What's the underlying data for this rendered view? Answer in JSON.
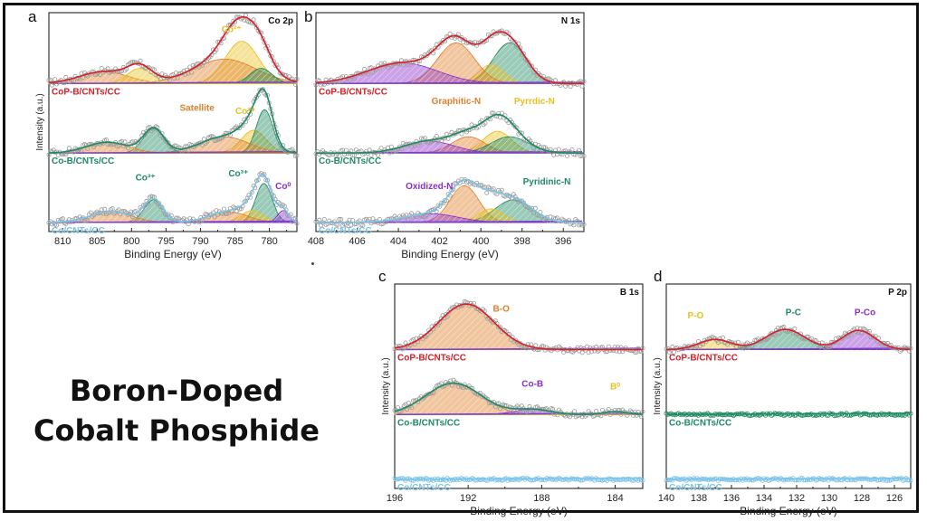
{
  "title_lines": [
    "Boron-Doped",
    "Cobalt Phosphide"
  ],
  "colors": {
    "CoP-B/CNTs/CC": "#d6202a",
    "Co-B/CNTs/CC": "#1f8a62",
    "Co/CNTs/CC": "#7cc3e8",
    "orange": "#e0802a",
    "yellow": "#e8c020",
    "green": "#1f8a62",
    "purple": "#8b2fc9"
  },
  "chart_data": [
    {
      "type": "line",
      "panel": "a",
      "title": "Co 2p",
      "xlabel": "Binding Energy (eV)",
      "ylabel": "Intensity (a.u.)",
      "xlim": [
        812,
        776
      ],
      "x_reversed": true,
      "x_ticks": [
        810,
        805,
        800,
        795,
        790,
        785,
        780
      ],
      "y_ticks": false,
      "series": [
        {
          "name": "CoP-B/CNTs/CC",
          "color": "#d6202a",
          "offset": 2.2,
          "peaks": [
            {
              "label": "Co²⁺",
              "center": 784,
              "height": 0.78,
              "width": 2.4,
              "color": "#e8c020"
            },
            {
              "center": 786.5,
              "height": 0.45,
              "width": 4.5,
              "color": "#e0802a"
            },
            {
              "center": 781.2,
              "height": 0.28,
              "width": 1.6,
              "color": "#1f8a62"
            },
            {
              "center": 804,
              "height": 0.22,
              "width": 3.5,
              "color": "#e0802a"
            },
            {
              "center": 798.8,
              "height": 0.28,
              "width": 1.8,
              "color": "#e8c020"
            }
          ]
        },
        {
          "name": "Co-B/CNTs/CC",
          "color": "#1f8a62",
          "offset": 1.1,
          "peaks": [
            {
              "label": "Co²⁺",
              "center": 782.3,
              "height": 0.42,
              "width": 1.8,
              "color": "#e8c020"
            },
            {
              "center": 780.7,
              "height": 0.8,
              "width": 1.2,
              "color": "#1f8a62"
            },
            {
              "label": "Satellite",
              "center": 786.5,
              "height": 0.3,
              "width": 3.5,
              "color": "#e0802a"
            },
            {
              "center": 796.8,
              "height": 0.45,
              "width": 1.5,
              "color": "#1f8a62"
            },
            {
              "center": 803.5,
              "height": 0.2,
              "width": 3.0,
              "color": "#e0802a"
            }
          ]
        },
        {
          "name": "Co/CNTs/CC",
          "color": "#7cc3e8",
          "offset": 0.0,
          "peaks": [
            {
              "label": "Co³⁺",
              "center": 780.8,
              "height": 0.72,
              "width": 1.2,
              "color": "#1f8a62"
            },
            {
              "center": 782.5,
              "height": 0.22,
              "width": 1.6,
              "color": "#e8c020"
            },
            {
              "center": 786,
              "height": 0.2,
              "width": 2.8,
              "color": "#e0802a"
            },
            {
              "label": "Co³⁺",
              "center": 796.8,
              "height": 0.42,
              "width": 1.4,
              "color": "#1f8a62"
            },
            {
              "center": 803,
              "height": 0.2,
              "width": 3.0,
              "color": "#e0802a"
            },
            {
              "label": "Co⁰",
              "center": 778,
              "height": 0.22,
              "width": 0.8,
              "color": "#8b2fc9"
            }
          ]
        }
      ],
      "annotations": [
        {
          "text": "Co²⁺",
          "series": "CoP-B/CNTs/CC",
          "x": 785.5,
          "dy": 0.95,
          "color": "#e8c020"
        },
        {
          "text": "Satellite",
          "series": "Co-B/CNTs/CC",
          "x": 790.5,
          "dy": 0.78,
          "color": "#e0802a"
        },
        {
          "text": "Co²⁺",
          "series": "Co-B/CNTs/CC",
          "x": 783.5,
          "dy": 0.72,
          "color": "#e8c020"
        },
        {
          "text": "Co³⁺",
          "series": "Co/CNTs/CC",
          "x": 798,
          "dy": 0.78,
          "color": "#1f8a62"
        },
        {
          "text": "Co³⁺",
          "series": "Co/CNTs/CC",
          "x": 784.5,
          "dy": 0.85,
          "color": "#1f8a62"
        },
        {
          "text": "Co⁰",
          "series": "Co/CNTs/CC",
          "x": 778,
          "dy": 0.62,
          "color": "#8b2fc9"
        }
      ]
    },
    {
      "type": "line",
      "panel": "b",
      "title": "N 1s",
      "xlabel": "Binding Energy (eV)",
      "ylabel": "",
      "xlim": [
        408,
        395
      ],
      "x_reversed": true,
      "x_ticks": [
        408,
        406,
        404,
        402,
        400,
        398,
        396
      ],
      "y_ticks": false,
      "series": [
        {
          "name": "CoP-B/CNTs/CC",
          "color": "#d6202a",
          "offset": 2.2,
          "peaks": [
            {
              "center": 398.6,
              "height": 0.75,
              "width": 0.8,
              "color": "#1f8a62"
            },
            {
              "center": 399.5,
              "height": 0.35,
              "width": 0.6,
              "color": "#e8c020"
            },
            {
              "center": 401.2,
              "height": 0.75,
              "width": 0.9,
              "color": "#e0802a"
            },
            {
              "center": 403.8,
              "height": 0.38,
              "width": 1.7,
              "color": "#8b2fc9"
            }
          ]
        },
        {
          "name": "Co-B/CNTs/CC",
          "color": "#1f8a62",
          "offset": 1.1,
          "peaks": [
            {
              "label": "Pyrrdic-N",
              "center": 399.2,
              "height": 0.4,
              "width": 0.7,
              "color": "#e8c020"
            },
            {
              "label": "Graphitic-N",
              "center": 400.6,
              "height": 0.3,
              "width": 0.8,
              "color": "#e0802a"
            },
            {
              "center": 398.6,
              "height": 0.3,
              "width": 0.9,
              "color": "#1f8a62"
            },
            {
              "center": 402.5,
              "height": 0.22,
              "width": 1.2,
              "color": "#8b2fc9"
            }
          ]
        },
        {
          "name": "Co/CNTs/CC",
          "color": "#7cc3e8",
          "offset": 0.0,
          "peaks": [
            {
              "center": 400.8,
              "height": 0.68,
              "width": 0.7,
              "color": "#e0802a"
            },
            {
              "label": "Pyridinic-N",
              "center": 398.4,
              "height": 0.42,
              "width": 0.9,
              "color": "#1f8a62"
            },
            {
              "center": 399.5,
              "height": 0.25,
              "width": 0.6,
              "color": "#e8c020"
            },
            {
              "label": "Oxidized-N",
              "center": 402.4,
              "height": 0.16,
              "width": 1.3,
              "color": "#8b2fc9"
            }
          ]
        }
      ],
      "annotations": [
        {
          "text": "Graphitic-N",
          "series": "Co-B/CNTs/CC",
          "x": 401.2,
          "dy": 0.9,
          "color": "#e0802a"
        },
        {
          "text": "Pyrrdic-N",
          "series": "Co-B/CNTs/CC",
          "x": 397.4,
          "dy": 0.9,
          "color": "#e8c020"
        },
        {
          "text": "Oxidized-N",
          "series": "Co/CNTs/CC",
          "x": 402.5,
          "dy": 0.62,
          "color": "#8b2fc9"
        },
        {
          "text": "Pyridinic-N",
          "series": "Co/CNTs/CC",
          "x": 396.8,
          "dy": 0.7,
          "color": "#1f8a62"
        }
      ]
    },
    {
      "type": "line",
      "panel": "c",
      "title": "B 1s",
      "xlabel": "Binding Energy (eV)",
      "ylabel": "Intensity (a.u.)",
      "xlim": [
        196,
        182.5
      ],
      "x_reversed": true,
      "x_ticks": [
        196,
        192,
        188,
        184
      ],
      "y_ticks": false,
      "series": [
        {
          "name": "CoP-B/CNTs/CC",
          "color": "#d6202a",
          "offset": 2.2,
          "peaks": [
            {
              "label": "B-O",
              "center": 192.1,
              "height": 0.9,
              "width": 1.5,
              "color": "#e0802a"
            }
          ]
        },
        {
          "name": "Co-B/CNTs/CC",
          "color": "#1f8a62",
          "offset": 1.1,
          "peaks": [
            {
              "center": 192.8,
              "height": 0.62,
              "width": 1.5,
              "color": "#e0802a"
            },
            {
              "label": "Co-B",
              "center": 188.5,
              "height": 0.1,
              "width": 1.0,
              "color": "#8b2fc9"
            },
            {
              "label": "B⁰",
              "center": 184,
              "height": 0.06,
              "width": 0.6,
              "color": "#e8c020"
            }
          ]
        },
        {
          "name": "Co/CNTs/CC",
          "color": "#7cc3e8",
          "offset": 0.0,
          "peaks": []
        }
      ],
      "annotations": [
        {
          "text": "B-O",
          "series": "CoP-B/CNTs/CC",
          "x": 190.2,
          "dy": 0.75,
          "color": "#e0802a"
        },
        {
          "text": "Co-B",
          "series": "Co-B/CNTs/CC",
          "x": 188.5,
          "dy": 0.55,
          "color": "#8b2fc9"
        },
        {
          "text": "B⁰",
          "series": "Co-B/CNTs/CC",
          "x": 184,
          "dy": 0.5,
          "color": "#e8c020"
        }
      ]
    },
    {
      "type": "line",
      "panel": "d",
      "title": "P 2p",
      "xlabel": "Binding Energy (eV)",
      "ylabel": "Intensity (a.u.)",
      "xlim": [
        140,
        125
      ],
      "x_reversed": true,
      "x_ticks": [
        140,
        138,
        136,
        134,
        132,
        130,
        128,
        126
      ],
      "y_ticks": false,
      "series": [
        {
          "name": "CoP-B/CNTs/CC",
          "color": "#d6202a",
          "offset": 2.2,
          "peaks": [
            {
              "label": "P-O",
              "center": 137,
              "height": 0.2,
              "width": 1.0,
              "color": "#e8c020"
            },
            {
              "label": "P-C",
              "center": 132.7,
              "height": 0.4,
              "width": 1.2,
              "color": "#1f8a62"
            },
            {
              "label": "P-Co",
              "center": 128.2,
              "height": 0.38,
              "width": 1.0,
              "color": "#8b2fc9"
            }
          ]
        },
        {
          "name": "Co-B/CNTs/CC",
          "color": "#1f8a62",
          "offset": 1.1,
          "peaks": []
        },
        {
          "name": "Co/CNTs/CC",
          "color": "#7cc3e8",
          "offset": 0.0,
          "peaks": []
        }
      ],
      "annotations": [
        {
          "text": "P-O",
          "series": "CoP-B/CNTs/CC",
          "x": 138.2,
          "dy": 0.62,
          "color": "#e8c020"
        },
        {
          "text": "P-C",
          "series": "CoP-B/CNTs/CC",
          "x": 132.2,
          "dy": 0.68,
          "color": "#1f8a62"
        },
        {
          "text": "P-Co",
          "series": "CoP-B/CNTs/CC",
          "x": 127.8,
          "dy": 0.68,
          "color": "#8b2fc9"
        }
      ]
    }
  ]
}
